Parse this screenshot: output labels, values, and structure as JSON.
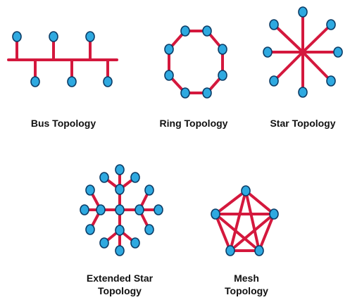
{
  "colors": {
    "link": "#d4183d",
    "node": "#2ea9e0",
    "node_outline": "#0b3c66"
  },
  "labels": {
    "bus": "Bus Topology",
    "ring": "Ring Topology",
    "star": "Star Topology",
    "extended_star_line1": "Extended Star",
    "extended_star_line2": "Topology",
    "mesh_line1": "Mesh",
    "mesh_line2": "Topology"
  }
}
